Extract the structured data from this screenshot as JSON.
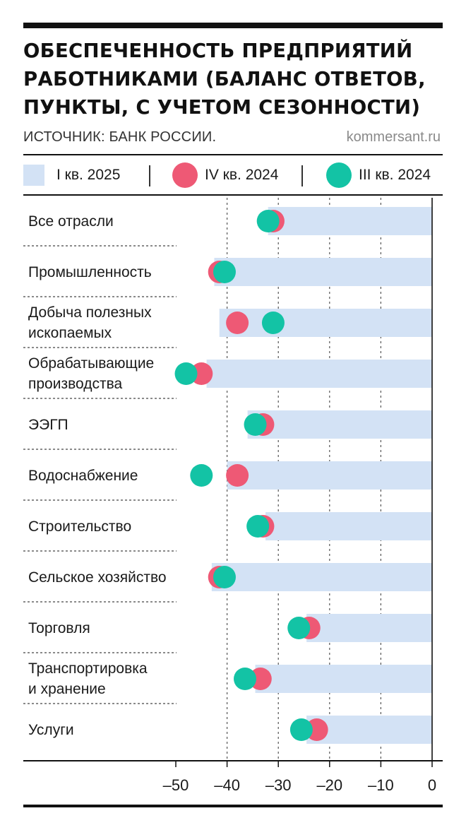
{
  "header": {
    "title_lines": [
      "ОБЕСПЕЧЕННОСТЬ ПРЕДПРИЯТИЙ",
      "РАБОТНИКАМИ (БАЛАНС ОТВЕТОВ,",
      "ПУНКТЫ, С УЧЕТОМ СЕЗОННОСТИ)"
    ],
    "source": "ИСТОЧНИК: БАНК РОССИИ.",
    "brand": "kommersant.ru"
  },
  "legend": [
    {
      "label": "I кв. 2025",
      "shape": "bar",
      "color": "#d3e2f5"
    },
    {
      "label": "IV кв. 2024",
      "shape": "dot",
      "color": "#ee5975"
    },
    {
      "label": "III кв. 2024",
      "shape": "dot",
      "color": "#13c3a5"
    }
  ],
  "chart_data": {
    "type": "bar",
    "orientation": "horizontal",
    "title": "ОБЕСПЕЧЕННОСТЬ ПРЕДПРИЯТИЙ РАБОТНИКАМИ (БАЛАНС ОТВЕТОВ, ПУНКТЫ, С УЧЕТОМ СЕЗОННОСТИ)",
    "categories": [
      [
        "Все отрасли"
      ],
      [
        "Промышленность"
      ],
      [
        "Добыча полезных",
        "ископаемых"
      ],
      [
        "Обрабатывающие",
        "производства"
      ],
      [
        "ЭЭГП"
      ],
      [
        "Водоснабжение"
      ],
      [
        "Строительство"
      ],
      [
        "Сельское хозяйство"
      ],
      [
        "Торговля"
      ],
      [
        "Транспортировка",
        "и хранение"
      ],
      [
        "Услуги"
      ]
    ],
    "series": [
      {
        "name": "I кв. 2025",
        "mark": "bar",
        "color": "#d3e2f5",
        "values": [
          -32,
          -42.5,
          -41.5,
          -44,
          -36,
          -40,
          -32.5,
          -43,
          -24.5,
          -34.5,
          -24.5
        ]
      },
      {
        "name": "IV кв. 2024",
        "mark": "dot",
        "color": "#ee5975",
        "values": [
          -31,
          -41.5,
          -38,
          -45,
          -33,
          -38,
          -33,
          -41.5,
          -24,
          -33.5,
          -22.5
        ]
      },
      {
        "name": "III кв. 2024",
        "mark": "dot",
        "color": "#13c3a5",
        "values": [
          -32,
          -40.5,
          -31,
          -48,
          -34.5,
          -45,
          -34,
          -40.5,
          -26,
          -36.5,
          -25.5
        ]
      }
    ],
    "x_ticks": [
      -50,
      -40,
      -30,
      -20,
      -10,
      0
    ],
    "x_tick_labels": [
      "–50",
      "–40",
      "–30",
      "–20",
      "–10",
      "0"
    ],
    "xlim": [
      -50,
      0
    ],
    "grid": "vertical dashed at -40, -30, -20, -10",
    "legend_placement": "top"
  }
}
